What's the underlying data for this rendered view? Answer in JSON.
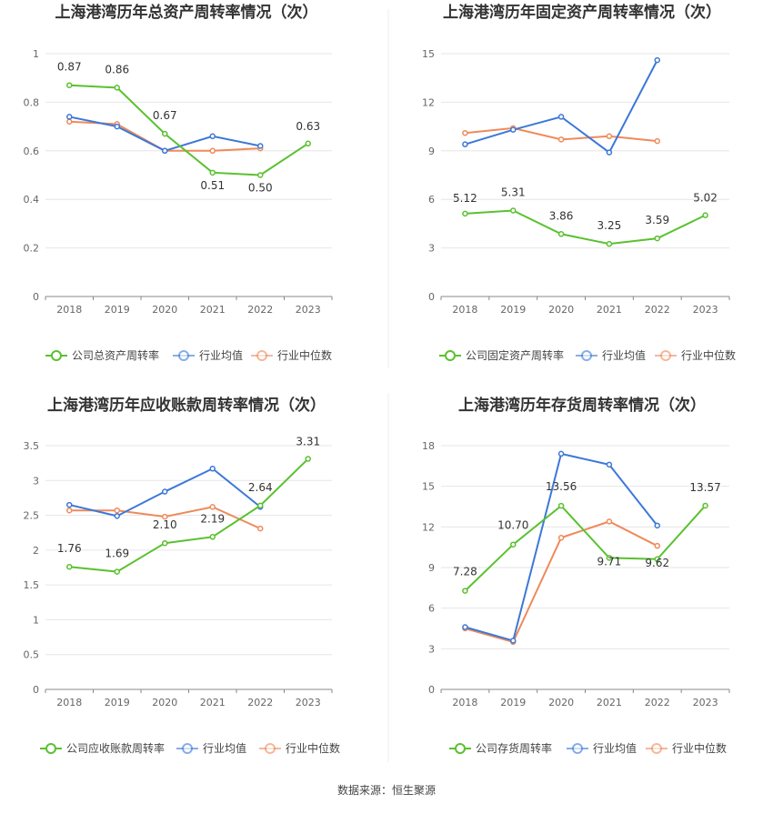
{
  "footer": {
    "source": "数据来源：恒生聚源"
  },
  "colors": {
    "company": "#5ac12f",
    "avg": "#3c78d8",
    "median": "#ef8a5a"
  },
  "chart_data": [
    {
      "type": "line",
      "title": "上海港湾历年总资产周转率情况（次）",
      "x": [
        "2018",
        "2019",
        "2020",
        "2021",
        "2022",
        "2023"
      ],
      "ylim": [
        0,
        1
      ],
      "yticks": [
        "0",
        "0.2",
        "0.4",
        "0.6",
        "0.8",
        "1"
      ],
      "ytick_values": [
        0,
        0.2,
        0.4,
        0.6,
        0.8,
        1
      ],
      "grid": true,
      "legend_position": "bottom",
      "series": [
        {
          "name": "公司总资产周转率",
          "key": "company",
          "values": [
            0.87,
            0.86,
            0.67,
            0.51,
            0.5,
            0.63
          ],
          "labels": [
            "0.87",
            "0.86",
            "0.67",
            "0.51",
            "0.50",
            "0.63"
          ]
        },
        {
          "name": "行业均值",
          "key": "avg",
          "values": [
            0.74,
            0.7,
            0.6,
            0.66,
            0.62,
            null
          ]
        },
        {
          "name": "行业中位数",
          "key": "median",
          "values": [
            0.72,
            0.71,
            0.6,
            0.6,
            0.61,
            null
          ]
        }
      ]
    },
    {
      "type": "line",
      "title": "上海港湾历年固定资产周转率情况（次）",
      "x": [
        "2018",
        "2019",
        "2020",
        "2021",
        "2022",
        "2023"
      ],
      "ylim": [
        0,
        15
      ],
      "yticks": [
        "0",
        "3",
        "6",
        "9",
        "12",
        "15"
      ],
      "ytick_values": [
        0,
        3,
        6,
        9,
        12,
        15
      ],
      "grid": true,
      "legend_position": "bottom",
      "series": [
        {
          "name": "公司固定资产周转率",
          "key": "company",
          "values": [
            5.12,
            5.31,
            3.86,
            3.25,
            3.59,
            5.02
          ],
          "labels": [
            "5.12",
            "5.31",
            "3.86",
            "3.25",
            "3.59",
            "5.02"
          ]
        },
        {
          "name": "行业均值",
          "key": "avg",
          "values": [
            9.4,
            10.3,
            11.1,
            8.9,
            14.6,
            null
          ]
        },
        {
          "name": "行业中位数",
          "key": "median",
          "values": [
            10.1,
            10.4,
            9.7,
            9.9,
            9.6,
            null
          ]
        }
      ]
    },
    {
      "type": "line",
      "title": "上海港湾历年应收账款周转率情况（次）",
      "x": [
        "2018",
        "2019",
        "2020",
        "2021",
        "2022",
        "2023"
      ],
      "ylim": [
        0,
        3.5
      ],
      "yticks": [
        "0",
        "0.5",
        "1",
        "1.5",
        "2",
        "2.5",
        "3",
        "3.5"
      ],
      "ytick_values": [
        0,
        0.5,
        1,
        1.5,
        2,
        2.5,
        3,
        3.5
      ],
      "grid": true,
      "legend_position": "bottom",
      "series": [
        {
          "name": "公司应收账款周转率",
          "key": "company",
          "values": [
            1.76,
            1.69,
            2.1,
            2.19,
            2.64,
            3.31
          ],
          "labels": [
            "1.76",
            "1.69",
            "2.10",
            "2.19",
            "2.64",
            "3.31"
          ]
        },
        {
          "name": "行业均值",
          "key": "avg",
          "values": [
            2.65,
            2.49,
            2.84,
            3.17,
            2.62,
            null
          ]
        },
        {
          "name": "行业中位数",
          "key": "median",
          "values": [
            2.57,
            2.57,
            2.48,
            2.62,
            2.31,
            null
          ]
        }
      ]
    },
    {
      "type": "line",
      "title": "上海港湾历年存货周转率情况（次）",
      "x": [
        "2018",
        "2019",
        "2020",
        "2021",
        "2022",
        "2023"
      ],
      "ylim": [
        0,
        18
      ],
      "yticks": [
        "0",
        "3",
        "6",
        "9",
        "12",
        "15",
        "18"
      ],
      "ytick_values": [
        0,
        3,
        6,
        9,
        12,
        15,
        18
      ],
      "grid": true,
      "legend_position": "bottom",
      "series": [
        {
          "name": "公司存货周转率",
          "key": "company",
          "values": [
            7.28,
            10.7,
            13.56,
            9.71,
            9.62,
            13.57
          ],
          "labels": [
            "7.28",
            "10.70",
            "13.56",
            "9.71",
            "9.62",
            "13.57"
          ]
        },
        {
          "name": "行业均值",
          "key": "avg",
          "values": [
            4.6,
            3.6,
            17.4,
            16.6,
            12.1,
            null
          ]
        },
        {
          "name": "行业中位数",
          "key": "median",
          "values": [
            4.5,
            3.5,
            11.2,
            12.4,
            10.6,
            null
          ]
        }
      ]
    }
  ]
}
